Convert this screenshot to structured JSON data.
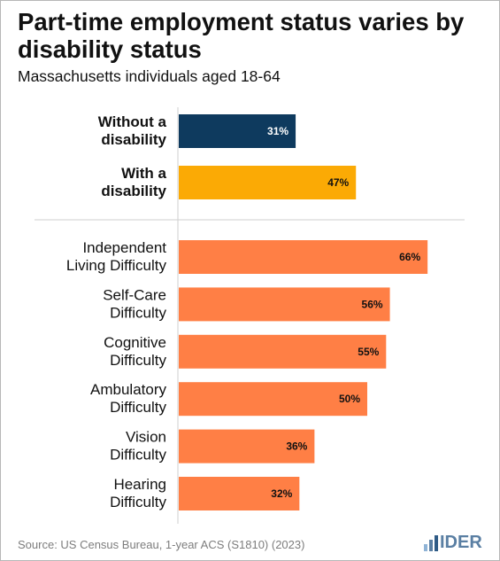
{
  "title": "Part-time employment status varies by disability status",
  "subtitle": "Massachusetts individuals aged 18-64",
  "source": "Source: US Census Bureau, 1-year ACS (S1810) (2023)",
  "logo_text": "IDER",
  "colors": {
    "without": "#0e3a5e",
    "with": "#fbaa05",
    "difficulty": "#ff7f45"
  },
  "chart_data": {
    "type": "bar",
    "orientation": "horizontal",
    "xlim": [
      0,
      100
    ],
    "groups": [
      {
        "categories": [
          {
            "label_lines": [
              "Without a",
              "disability"
            ],
            "value": 31,
            "value_label": "31%",
            "color_key": "without"
          },
          {
            "label_lines": [
              "With a",
              "disability"
            ],
            "value": 47,
            "value_label": "47%",
            "color_key": "with"
          }
        ]
      },
      {
        "categories": [
          {
            "label_lines": [
              "Independent",
              "Living Difficulty"
            ],
            "value": 66,
            "value_label": "66%",
            "color_key": "difficulty"
          },
          {
            "label_lines": [
              "Self-Care",
              "Difficulty"
            ],
            "value": 56,
            "value_label": "56%",
            "color_key": "difficulty"
          },
          {
            "label_lines": [
              "Cognitive",
              "Difficulty"
            ],
            "value": 55,
            "value_label": "55%",
            "color_key": "difficulty"
          },
          {
            "label_lines": [
              "Ambulatory",
              "Difficulty"
            ],
            "value": 50,
            "value_label": "50%",
            "color_key": "difficulty"
          },
          {
            "label_lines": [
              "Vision",
              "Difficulty"
            ],
            "value": 36,
            "value_label": "36%",
            "color_key": "difficulty"
          },
          {
            "label_lines": [
              "Hearing",
              "Difficulty"
            ],
            "value": 32,
            "value_label": "32%",
            "color_key": "difficulty"
          }
        ]
      }
    ]
  }
}
